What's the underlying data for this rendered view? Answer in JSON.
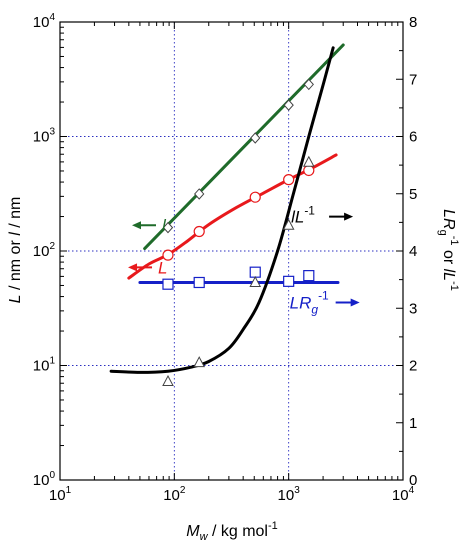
{
  "chart_data": {
    "type": "scatter",
    "x_axis": {
      "label_prefix": "M",
      "label_sub": "w",
      "label_suffix": " / kg mol",
      "label_sup": "-1",
      "scale": "log",
      "range": [
        10,
        10000
      ],
      "ticks": [
        {
          "base": "10",
          "exp": "1",
          "value": 10
        },
        {
          "base": "10",
          "exp": "2",
          "value": 100
        },
        {
          "base": "10",
          "exp": "3",
          "value": 1000
        },
        {
          "base": "10",
          "exp": "4",
          "value": 10000
        }
      ]
    },
    "y_left_axis": {
      "label": "L / nm or l / nm",
      "scale": "log",
      "range": [
        1,
        10000
      ],
      "ticks": [
        {
          "base": "10",
          "exp": "0",
          "value": 1
        },
        {
          "base": "10",
          "exp": "1",
          "value": 10
        },
        {
          "base": "10",
          "exp": "2",
          "value": 100
        },
        {
          "base": "10",
          "exp": "3",
          "value": 1000
        },
        {
          "base": "10",
          "exp": "4",
          "value": 10000
        }
      ]
    },
    "y_right_axis": {
      "label": "LRg-1 or lL-1",
      "scale": "linear",
      "range": [
        0,
        8
      ],
      "ticks": [
        "0",
        "1",
        "2",
        "3",
        "4",
        "5",
        "6",
        "7",
        "8"
      ]
    },
    "grid": "dotted blue at major x and y-left decades",
    "series": [
      {
        "name": "l",
        "axis": "left",
        "color": "#1f6b2a",
        "marker": "diamond",
        "points": [
          [
            88,
            160
          ],
          [
            165,
            315
          ],
          [
            510,
            970
          ],
          [
            1000,
            1880
          ],
          [
            1500,
            2850
          ]
        ],
        "fit_line": [
          [
            55,
            105
          ],
          [
            3000,
            6300
          ]
        ]
      },
      {
        "name": "L",
        "axis": "left",
        "color": "#e8191c",
        "marker": "circle",
        "points": [
          [
            88,
            92
          ],
          [
            165,
            148
          ],
          [
            510,
            295
          ],
          [
            1000,
            420
          ],
          [
            1500,
            505
          ]
        ],
        "fit_line": [
          [
            40,
            58
          ],
          [
            60,
            77
          ],
          [
            88,
            93
          ],
          [
            130,
            122
          ],
          [
            200,
            170
          ],
          [
            350,
            240
          ],
          [
            600,
            320
          ],
          [
            1000,
            420
          ],
          [
            1600,
            530
          ],
          [
            2600,
            690
          ]
        ]
      },
      {
        "name": "LRg-1",
        "axis": "right",
        "color": "#1520c8",
        "marker": "square",
        "points": [
          [
            88,
            3.42
          ],
          [
            165,
            3.45
          ],
          [
            510,
            3.63
          ],
          [
            1000,
            3.47
          ],
          [
            1500,
            3.57
          ]
        ],
        "fit_line": [
          [
            50,
            3.45
          ],
          [
            2700,
            3.45
          ]
        ]
      },
      {
        "name": "lL-1",
        "axis": "right",
        "color": "#000000",
        "marker": "triangle",
        "points": [
          [
            88,
            1.72
          ],
          [
            165,
            2.05
          ],
          [
            510,
            3.45
          ],
          [
            1000,
            4.45
          ],
          [
            1500,
            5.55
          ]
        ],
        "fit_line": [
          [
            28,
            1.9
          ],
          [
            50,
            1.88
          ],
          [
            88,
            1.9
          ],
          [
            140,
            1.97
          ],
          [
            200,
            2.07
          ],
          [
            300,
            2.3
          ],
          [
            400,
            2.63
          ],
          [
            550,
            3.1
          ],
          [
            800,
            4.0
          ],
          [
            1100,
            5.0
          ],
          [
            1500,
            6.0
          ],
          [
            2000,
            6.9
          ],
          [
            2450,
            7.55
          ]
        ]
      }
    ],
    "annotations": [
      {
        "id": "l",
        "text": "l",
        "arrow": "left",
        "color": "#1f6b2a",
        "anchor": [
          78,
          168
        ]
      },
      {
        "id": "L",
        "text": "L",
        "arrow": "left",
        "color": "#e8191c",
        "anchor": [
          72,
          72
        ]
      },
      {
        "id": "lL",
        "text": "lL",
        "sup": "-1",
        "arrow": "right",
        "color": "#000000",
        "anchor": [
          1050,
          4.6
        ]
      },
      {
        "id": "LRg",
        "text": "LR",
        "sub": "g",
        "sup": "-1",
        "arrow": "right",
        "color": "#1520c8",
        "anchor": [
          1020,
          3.1
        ]
      }
    ]
  }
}
